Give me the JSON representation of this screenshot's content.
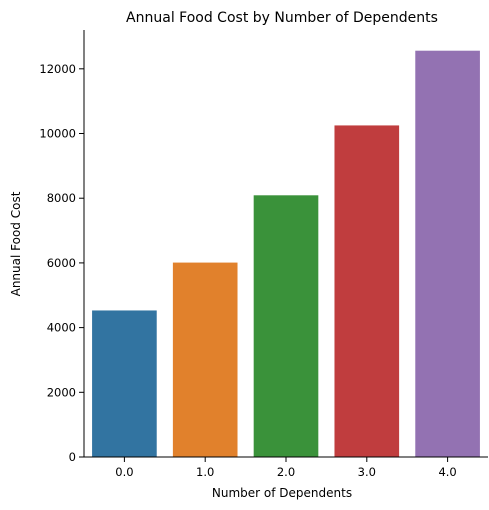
{
  "chart_data": {
    "type": "bar",
    "title": "Annual Food Cost by Number of Dependents",
    "xlabel": "Number of Dependents",
    "ylabel": "Annual Food Cost",
    "categories": [
      "0.0",
      "1.0",
      "2.0",
      "3.0",
      "4.0"
    ],
    "values": [
      4530,
      6010,
      8090,
      10250,
      12560
    ],
    "colors": [
      "#3274a1",
      "#e1812c",
      "#3a923a",
      "#c03d3e",
      "#9372b2"
    ],
    "ylim": [
      0,
      13200
    ],
    "yticks": [
      0,
      2000,
      4000,
      6000,
      8000,
      10000,
      12000
    ],
    "grid": false,
    "legend": "none"
  }
}
